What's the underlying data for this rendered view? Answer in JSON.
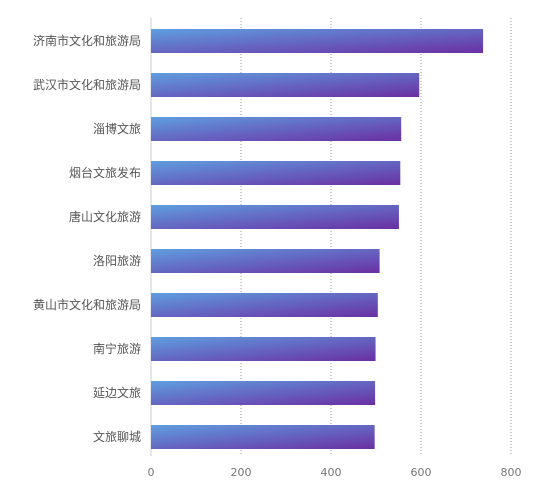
{
  "chart_data": {
    "type": "bar",
    "orientation": "horizontal",
    "categories": [
      "济南市文化和旅游局",
      "武汉市文化和旅游局",
      "淄博文旅",
      "烟台文旅发布",
      "唐山文化旅游",
      "洛阳旅游",
      "黄山市文化和旅游局",
      "南宁旅游",
      "延边文旅",
      "文旅聊城"
    ],
    "values": [
      738,
      596,
      556,
      554,
      551,
      508,
      504,
      499,
      498,
      497
    ],
    "xlim": [
      0,
      800
    ],
    "xticks": [
      0,
      200,
      400,
      600,
      800
    ],
    "tick_labels": [
      "0",
      "200",
      "400",
      "600",
      "800"
    ],
    "grid": "vertical dotted",
    "title": "",
    "xlabel": "",
    "ylabel": "",
    "colors": {
      "bar_start": "#5f9ee0",
      "bar_end": "#6a2fa3",
      "grid": "#999999",
      "axis": "#cccccc",
      "label": "#555555"
    }
  }
}
